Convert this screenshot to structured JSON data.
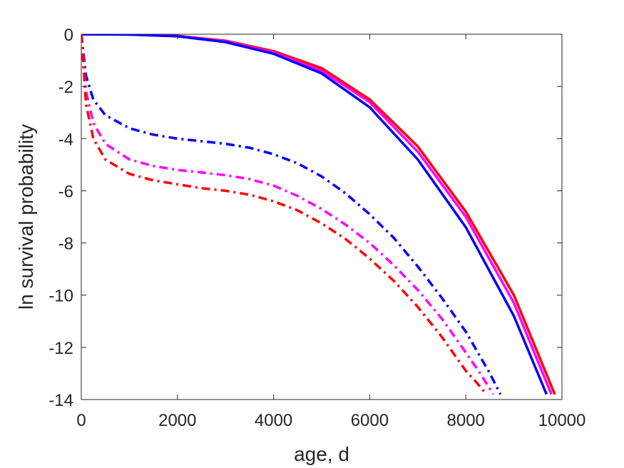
{
  "chart_data": {
    "type": "line",
    "title": "",
    "xlabel": "age, d",
    "ylabel": "ln survival probability",
    "xlim": [
      0,
      10000
    ],
    "ylim": [
      -14,
      0
    ],
    "xticks": [
      0,
      2000,
      4000,
      6000,
      8000,
      10000
    ],
    "yticks": [
      0,
      -2,
      -4,
      -6,
      -8,
      -10,
      -12,
      -14
    ],
    "xtick_labels": [
      "0",
      "2000",
      "4000",
      "6000",
      "8000",
      "10000"
    ],
    "ytick_labels": [
      "0",
      "-2",
      "-4",
      "-6",
      "-8",
      "-10",
      "-12",
      "-14"
    ],
    "grid": false,
    "series": [
      {
        "color": "#ff0000",
        "style": "solid",
        "x": [
          0,
          1000,
          2000,
          3000,
          4000,
          5000,
          6000,
          7000,
          8000,
          9000,
          9850
        ],
        "y": [
          0,
          -0.01,
          -0.06,
          -0.25,
          -0.65,
          -1.3,
          -2.5,
          -4.3,
          -6.8,
          -10.0,
          -13.8
        ]
      },
      {
        "color": "#ff00ff",
        "style": "solid",
        "x": [
          0,
          1000,
          2000,
          3000,
          4000,
          5000,
          6000,
          7000,
          8000,
          9000,
          9780
        ],
        "y": [
          0,
          -0.01,
          -0.07,
          -0.27,
          -0.7,
          -1.4,
          -2.6,
          -4.5,
          -7.0,
          -10.3,
          -13.8
        ]
      },
      {
        "color": "#0000ff",
        "style": "solid",
        "x": [
          0,
          1000,
          2000,
          3000,
          4000,
          5000,
          6000,
          7000,
          8000,
          9000,
          9680
        ],
        "y": [
          0,
          -0.01,
          -0.08,
          -0.3,
          -0.75,
          -1.5,
          -2.8,
          -4.8,
          -7.4,
          -10.8,
          -13.8
        ]
      },
      {
        "color": "#0000ff",
        "style": "dashdot",
        "x": [
          0,
          100,
          250,
          500,
          1000,
          1500,
          2000,
          2500,
          3000,
          3500,
          4000,
          4500,
          5000,
          5500,
          6000,
          6500,
          7000,
          7500,
          8000,
          8500,
          8720
        ],
        "y": [
          0,
          -1.6,
          -2.5,
          -3.1,
          -3.6,
          -3.85,
          -4.0,
          -4.1,
          -4.2,
          -4.35,
          -4.6,
          -4.95,
          -5.45,
          -6.1,
          -6.9,
          -7.8,
          -8.9,
          -10.1,
          -11.4,
          -13.0,
          -13.8
        ]
      },
      {
        "color": "#ff00ff",
        "style": "dashdot",
        "x": [
          0,
          100,
          250,
          500,
          1000,
          1500,
          2000,
          2500,
          3000,
          3500,
          4000,
          4500,
          5000,
          5500,
          6000,
          6500,
          7000,
          7500,
          8000,
          8300,
          8570
        ],
        "y": [
          0,
          -2.2,
          -3.4,
          -4.2,
          -4.8,
          -5.05,
          -5.2,
          -5.3,
          -5.4,
          -5.55,
          -5.8,
          -6.2,
          -6.7,
          -7.3,
          -8.0,
          -8.85,
          -9.8,
          -10.9,
          -12.2,
          -13.0,
          -13.8
        ]
      },
      {
        "color": "#ff0000",
        "style": "dashdot",
        "x": [
          0,
          100,
          250,
          500,
          1000,
          1500,
          2000,
          2500,
          3000,
          3500,
          4000,
          4500,
          5000,
          5500,
          6000,
          6500,
          7000,
          7500,
          8000,
          8200,
          8430
        ],
        "y": [
          0,
          -2.7,
          -4.0,
          -4.8,
          -5.35,
          -5.6,
          -5.75,
          -5.9,
          -6.0,
          -6.15,
          -6.4,
          -6.75,
          -7.25,
          -7.85,
          -8.6,
          -9.45,
          -10.45,
          -11.6,
          -12.9,
          -13.3,
          -13.8
        ]
      }
    ]
  }
}
